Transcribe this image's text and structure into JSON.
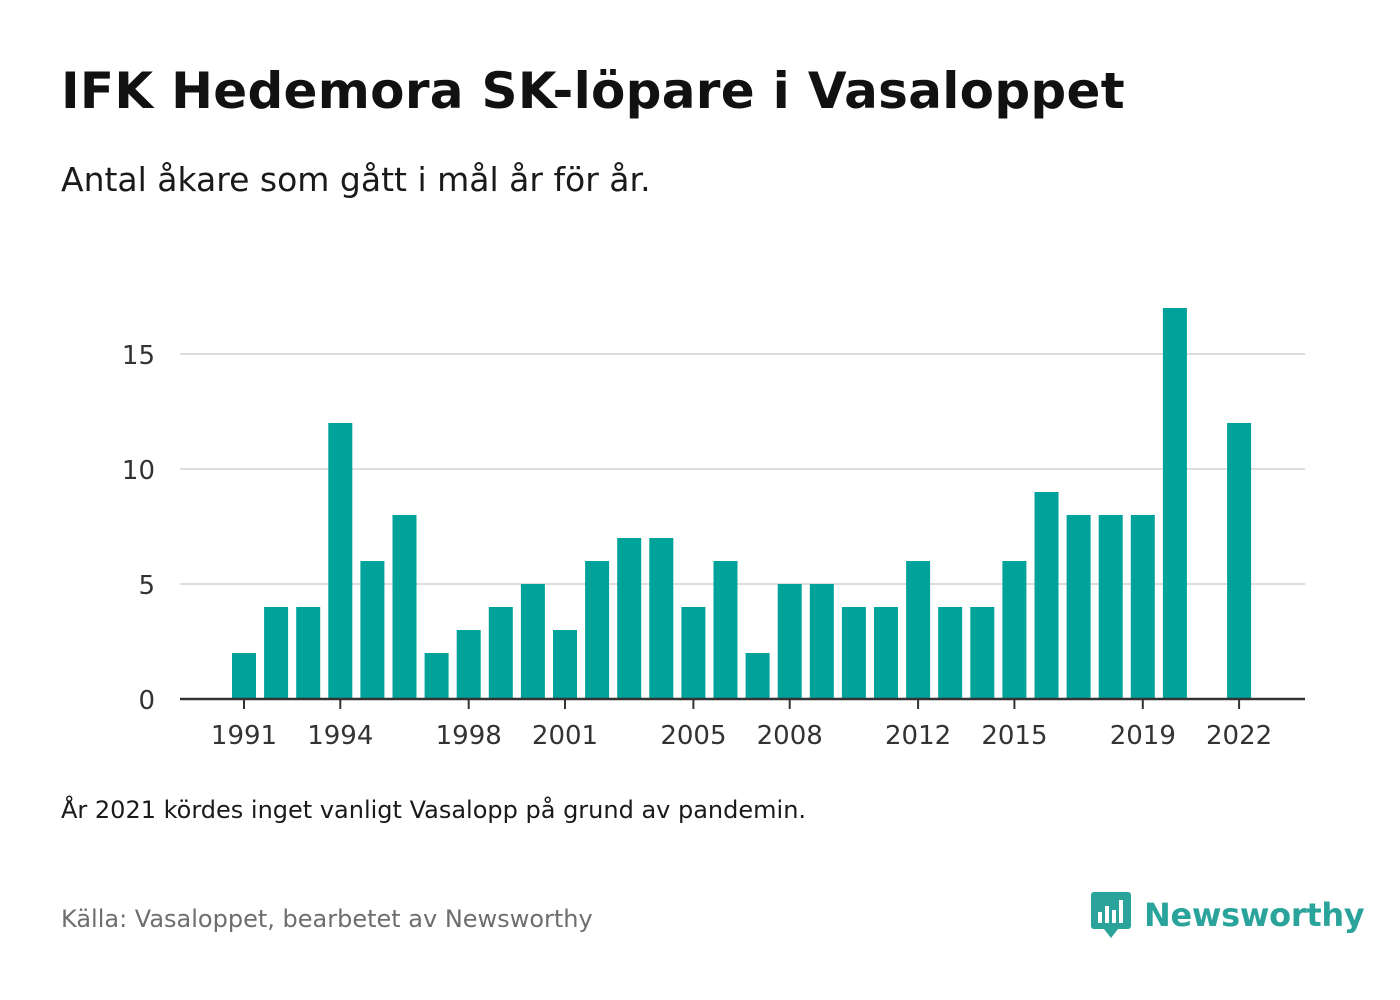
{
  "title": "IFK Hedemora SK-löpare i Vasaloppet",
  "subtitle": "Antal åkare som gått i mål år för år.",
  "note": "År 2021 kördes inget vanligt Vasalopp på grund av pandemin.",
  "source": "Källa: Vasaloppet, bearbetet av Newsworthy",
  "brand": {
    "name": "Newsworthy",
    "icon": "newsworthy-chart-bubble-icon",
    "color": "#2aa39b"
  },
  "chart_data": {
    "type": "bar",
    "title": "IFK Hedemora SK-löpare i Vasaloppet",
    "subtitle": "Antal åkare som gått i mål år för år.",
    "xlabel": "",
    "ylabel": "",
    "x": [
      1991,
      1992,
      1993,
      1994,
      1995,
      1996,
      1997,
      1998,
      1999,
      2000,
      2001,
      2002,
      2003,
      2004,
      2005,
      2006,
      2007,
      2008,
      2009,
      2010,
      2011,
      2012,
      2013,
      2014,
      2015,
      2016,
      2017,
      2018,
      2019,
      2020,
      2021,
      2022
    ],
    "values": [
      2,
      4,
      4,
      12,
      6,
      8,
      2,
      3,
      4,
      5,
      3,
      6,
      7,
      7,
      4,
      6,
      2,
      5,
      5,
      4,
      4,
      6,
      4,
      4,
      6,
      9,
      8,
      8,
      8,
      17,
      null,
      12
    ],
    "x_ticks": [
      1991,
      1994,
      1998,
      2001,
      2005,
      2008,
      2012,
      2015,
      2019,
      2022
    ],
    "y_ticks": [
      0,
      5,
      10,
      15
    ],
    "ylim": [
      0,
      17
    ],
    "grid": true,
    "bar_color": "#00a39a",
    "grid_color": "#dddddd",
    "axis_color": "#333333"
  }
}
